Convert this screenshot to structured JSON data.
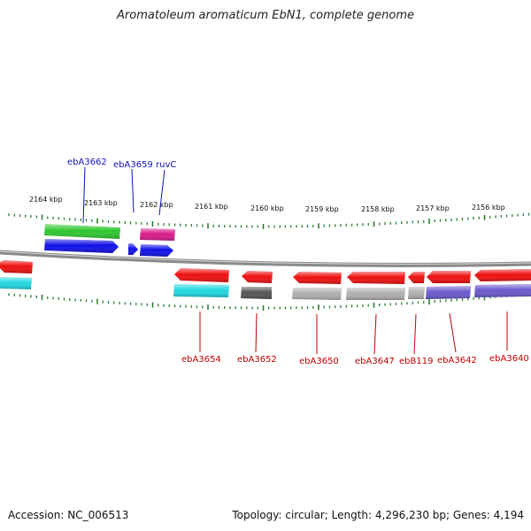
{
  "title": "Aromatoleum aromaticum EbN1, complete genome",
  "footer": {
    "accession": "Accession: NC_006513",
    "summary": "Topology: circular; Length: 4,296,230 bp; Genes: 4,194"
  },
  "colors": {
    "backbone": "#8a8a8a",
    "tick": "#2e7d32",
    "upper_label": "#1010c0",
    "lower_label": "#c00000"
  },
  "ticks": [
    {
      "label": "2164 kbp"
    },
    {
      "label": "2163 kbp"
    },
    {
      "label": "2162 kbp"
    },
    {
      "label": "2161 kbp"
    },
    {
      "label": "2160 kbp"
    },
    {
      "label": "2159 kbp"
    },
    {
      "label": "2158 kbp"
    },
    {
      "label": "2157 kbp"
    },
    {
      "label": "2156 kbp"
    }
  ],
  "labels": {
    "upper": [
      {
        "name": "ebA3662"
      },
      {
        "name": "ebA3659"
      },
      {
        "name": "ruvC"
      }
    ],
    "lower": [
      {
        "name": "ebA3654"
      },
      {
        "name": "ebA3652"
      },
      {
        "name": "ebA3650"
      },
      {
        "name": "ebA3647"
      },
      {
        "name": "ebB119"
      },
      {
        "name": "ebA3642"
      },
      {
        "name": "ebA3640"
      }
    ]
  },
  "features": {
    "upper": [
      {
        "color": "#2fc72f"
      },
      {
        "color": "#d81b8c"
      },
      {
        "color": "#1010e8"
      },
      {
        "color": "#1010e8"
      },
      {
        "color": "#1010e8"
      }
    ],
    "lower": [
      {
        "color": "#ee1010"
      },
      {
        "color": "#22d8e0"
      },
      {
        "color": "#ee1010"
      },
      {
        "color": "#22d8e0"
      },
      {
        "color": "#ee1010"
      },
      {
        "color": "#555555"
      },
      {
        "color": "#ee1010"
      },
      {
        "color": "#b0b0b0"
      },
      {
        "color": "#ee1010"
      },
      {
        "color": "#b0b0b0"
      },
      {
        "color": "#ee1010"
      },
      {
        "color": "#b0b0b0"
      },
      {
        "color": "#ee1010"
      },
      {
        "color": "#6a5acd"
      },
      {
        "color": "#ee1010"
      },
      {
        "color": "#6a5acd"
      }
    ]
  }
}
